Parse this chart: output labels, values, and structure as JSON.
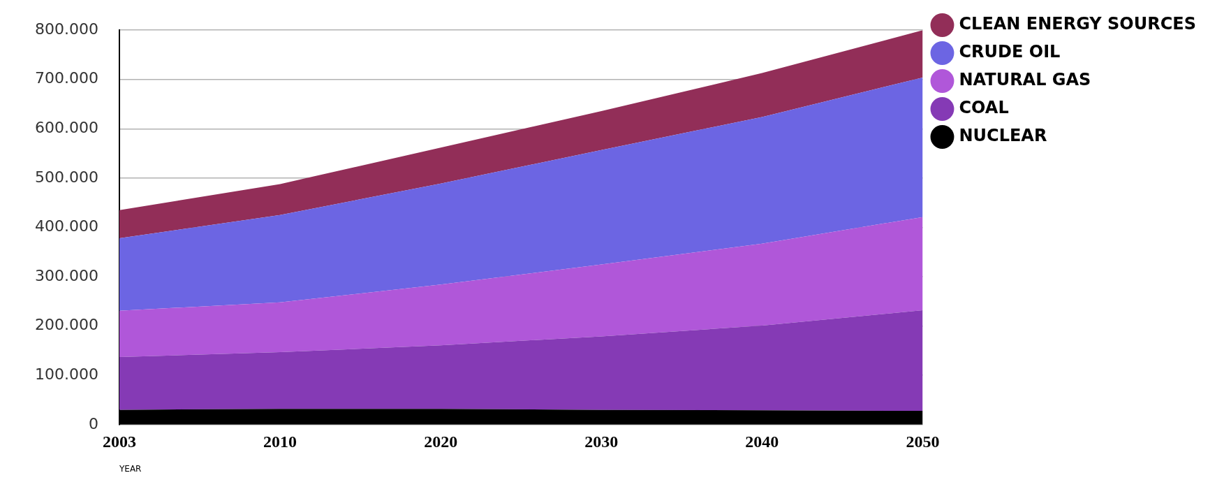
{
  "chart_data": {
    "type": "area",
    "stacked": true,
    "xlabel": "YEAR",
    "categories": [
      "2003",
      "2010",
      "2020",
      "2030",
      "2040",
      "2050"
    ],
    "series": [
      {
        "name": "NUCLEAR",
        "color": "#000000",
        "values": [
          30000,
          32000,
          32000,
          30000,
          29000,
          28000
        ]
      },
      {
        "name": "COAL",
        "color": "#853ab5",
        "values": [
          107000,
          115000,
          129000,
          149000,
          172000,
          204000
        ]
      },
      {
        "name": "NATURAL GAS",
        "color": "#b057d9",
        "values": [
          94000,
          101000,
          123000,
          146000,
          166000,
          189000
        ]
      },
      {
        "name": "CRUDE OIL",
        "color": "#6c65e3",
        "values": [
          147000,
          177000,
          205000,
          232000,
          257000,
          283000
        ]
      },
      {
        "name": "CLEAN ENERGY SOURCES",
        "color": "#922e58",
        "values": [
          57000,
          63000,
          73000,
          79000,
          89000,
          96000
        ]
      }
    ],
    "ylim": [
      0,
      800000
    ],
    "yticks": [
      {
        "value": 0,
        "label": "0"
      },
      {
        "value": 100000,
        "label": "100.000"
      },
      {
        "value": 200000,
        "label": "200.000"
      },
      {
        "value": 300000,
        "label": "300.000"
      },
      {
        "value": 400000,
        "label": "400.000"
      },
      {
        "value": 500000,
        "label": "500.000"
      },
      {
        "value": 600000,
        "label": "600.000"
      },
      {
        "value": 700000,
        "label": "700.000"
      },
      {
        "value": 800000,
        "label": "800.000"
      }
    ],
    "grid": "y",
    "legend": "top right",
    "marker": "none"
  }
}
